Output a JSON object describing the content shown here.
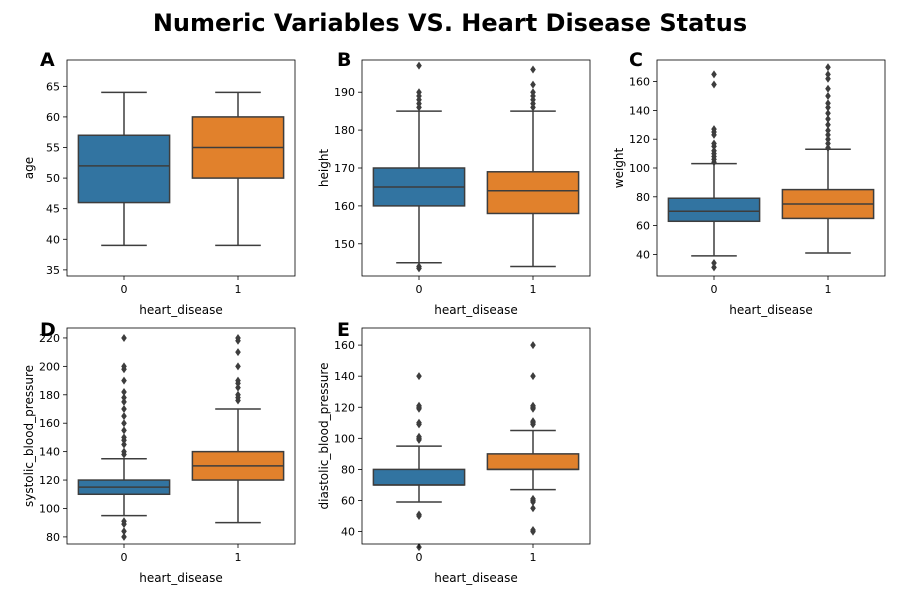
{
  "title": "Numeric Variables VS. Heart Disease Status",
  "colors": {
    "group_0": "#3274a1",
    "group_1": "#e1812c",
    "line": "#3d3d3d"
  },
  "chart_data": [
    {
      "panel": "A",
      "type": "box",
      "xlabel": "heart_disease",
      "ylabel": "age",
      "categories": [
        "0",
        "1"
      ],
      "ylim": [
        34,
        69.3
      ],
      "yticks": [
        35,
        40,
        45,
        50,
        55,
        60,
        65
      ],
      "boxes": [
        {
          "category": "0",
          "whisker_low": 39,
          "q1": 46,
          "median": 52,
          "q3": 57,
          "whisker_high": 64,
          "outliers": []
        },
        {
          "category": "1",
          "whisker_low": 39,
          "q1": 50,
          "median": 55,
          "q3": 60,
          "whisker_high": 64,
          "outliers": []
        }
      ]
    },
    {
      "panel": "B",
      "type": "box",
      "xlabel": "heart_disease",
      "ylabel": "height",
      "categories": [
        "0",
        "1"
      ],
      "ylim": [
        141.5,
        198.5
      ],
      "yticks": [
        150,
        160,
        170,
        180,
        190
      ],
      "boxes": [
        {
          "category": "0",
          "whisker_low": 145,
          "q1": 160,
          "median": 165,
          "q3": 170,
          "whisker_high": 185,
          "outliers": [
            143.5,
            144,
            186,
            187,
            188,
            189,
            190,
            197
          ]
        },
        {
          "category": "1",
          "whisker_low": 144,
          "q1": 158,
          "median": 164,
          "q3": 169,
          "whisker_high": 185,
          "outliers": [
            186,
            187,
            188,
            189,
            190,
            192,
            196
          ]
        }
      ]
    },
    {
      "panel": "C",
      "type": "box",
      "xlabel": "heart_disease",
      "ylabel": "weight",
      "categories": [
        "0",
        "1"
      ],
      "ylim": [
        25,
        175
      ],
      "yticks": [
        40,
        60,
        80,
        100,
        120,
        140,
        160
      ],
      "boxes": [
        {
          "category": "0",
          "whisker_low": 39,
          "q1": 63,
          "median": 70,
          "q3": 79,
          "whisker_high": 103,
          "outliers": [
            31,
            34,
            104,
            106,
            108,
            110,
            112,
            115,
            117,
            123,
            125,
            127,
            158,
            165
          ]
        },
        {
          "category": "1",
          "whisker_low": 41,
          "q1": 65,
          "median": 75,
          "q3": 85,
          "whisker_high": 113,
          "outliers": [
            114,
            117,
            120,
            123,
            126,
            130,
            134,
            138,
            142,
            145,
            150,
            155,
            162,
            165,
            170
          ]
        }
      ]
    },
    {
      "panel": "D",
      "type": "box",
      "xlabel": "heart_disease",
      "ylabel": "systolic_blood_pressure",
      "categories": [
        "0",
        "1"
      ],
      "ylim": [
        75,
        227
      ],
      "yticks": [
        80,
        100,
        120,
        140,
        160,
        180,
        200,
        220
      ],
      "boxes": [
        {
          "category": "0",
          "whisker_low": 95,
          "q1": 110,
          "median": 115,
          "q3": 120,
          "whisker_high": 135,
          "outliers": [
            80,
            84,
            89,
            91,
            138,
            140,
            145,
            148,
            150,
            155,
            160,
            165,
            170,
            175,
            178,
            182,
            190,
            198,
            200,
            220
          ]
        },
        {
          "category": "1",
          "whisker_low": 90,
          "q1": 120,
          "median": 130,
          "q3": 140,
          "whisker_high": 170,
          "outliers": [
            176,
            178,
            180,
            185,
            188,
            190,
            200,
            210,
            218,
            220
          ]
        }
      ]
    },
    {
      "panel": "E",
      "type": "box",
      "xlabel": "heart_disease",
      "ylabel": "diastolic_blood_pressure",
      "categories": [
        "0",
        "1"
      ],
      "ylim": [
        32,
        171
      ],
      "yticks": [
        40,
        60,
        80,
        100,
        120,
        140,
        160
      ],
      "boxes": [
        {
          "category": "0",
          "whisker_low": 59,
          "q1": 70,
          "median": 70,
          "q3": 80,
          "whisker_high": 95,
          "outliers": [
            30,
            50,
            51,
            99,
            100,
            101,
            109,
            110,
            119,
            120,
            121,
            140
          ]
        },
        {
          "category": "1",
          "whisker_low": 67,
          "q1": 80,
          "median": 80,
          "q3": 90,
          "whisker_high": 105,
          "outliers": [
            40,
            41,
            55,
            59,
            60,
            61,
            109,
            110,
            111,
            119,
            120,
            121,
            140,
            160
          ]
        }
      ]
    }
  ]
}
